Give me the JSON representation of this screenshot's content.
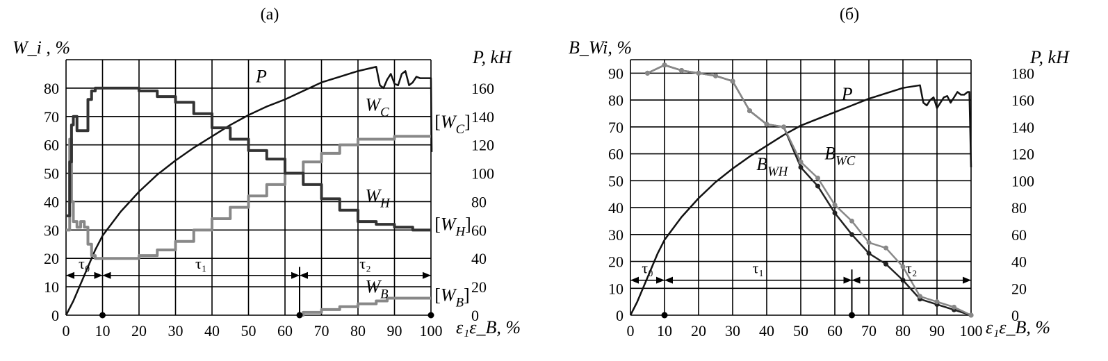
{
  "chart_data": [
    {
      "type": "line",
      "panel_label": "(a)",
      "ylabel_left": "W_i , %",
      "ylabel_right": "P, kH",
      "xlabel": "ε₁ε_B, %",
      "xlim": [
        0,
        100
      ],
      "ylim_left": [
        0,
        90
      ],
      "ylim_right": [
        0,
        180
      ],
      "x_ticks": [
        0,
        10,
        20,
        30,
        40,
        50,
        60,
        70,
        80,
        90,
        100
      ],
      "y_ticks_left": [
        0,
        10,
        20,
        30,
        40,
        50,
        60,
        70,
        80
      ],
      "y_ticks_right": [
        0,
        20,
        40,
        60,
        80,
        100,
        120,
        140,
        160
      ],
      "grid": true,
      "series": [
        {
          "name": "P",
          "axis": "right",
          "color": "#111111",
          "kind": "line",
          "x": [
            0,
            2,
            4,
            6,
            8,
            10,
            15,
            20,
            25,
            30,
            35,
            40,
            45,
            50,
            55,
            60,
            65,
            70,
            75,
            80,
            85,
            86,
            87,
            88,
            89,
            90,
            91,
            92,
            93,
            94,
            95,
            96,
            97,
            98,
            99,
            100,
            100.2
          ],
          "y": [
            0,
            10,
            22,
            34,
            46,
            56,
            73,
            87,
            99,
            109,
            118,
            126,
            134,
            141,
            147,
            152,
            158,
            164,
            168,
            172,
            175,
            162,
            160,
            166,
            170,
            163,
            162,
            170,
            172,
            162,
            164,
            168,
            167,
            167,
            167,
            167,
            115
          ]
        },
        {
          "name": "W_C",
          "axis": "left",
          "color": "#888888",
          "kind": "step",
          "x": [
            0,
            1,
            1.5,
            2,
            3,
            4,
            5,
            6,
            7,
            8,
            10,
            15,
            20,
            25,
            30,
            35,
            40,
            45,
            50,
            55,
            60,
            65,
            70,
            75,
            80,
            85,
            90,
            95,
            100
          ],
          "y": [
            30,
            62,
            40,
            33,
            31,
            33,
            31,
            25,
            21,
            20,
            20,
            20,
            21,
            23,
            26,
            30,
            34,
            38,
            42,
            46,
            50,
            54,
            57,
            60,
            62,
            62,
            63,
            63,
            63
          ]
        },
        {
          "name": "W_H",
          "axis": "left",
          "color": "#333333",
          "kind": "step",
          "x": [
            0,
            1,
            1.5,
            2,
            3,
            4,
            5,
            6,
            7,
            8,
            10,
            15,
            20,
            25,
            30,
            35,
            40,
            45,
            50,
            55,
            60,
            65,
            70,
            75,
            80,
            85,
            90,
            95,
            100
          ],
          "y": [
            35,
            54,
            67,
            70,
            65,
            65,
            65,
            76,
            79,
            80,
            80,
            80,
            79,
            77,
            75,
            71,
            66,
            62,
            58,
            55,
            50,
            46,
            41,
            37,
            33,
            32,
            31,
            30,
            30
          ]
        },
        {
          "name": "W_B",
          "axis": "left",
          "color": "#888888",
          "kind": "step",
          "x": [
            64,
            65,
            70,
            75,
            80,
            85,
            88,
            90,
            95,
            100
          ],
          "y": [
            0,
            1,
            2,
            3,
            4,
            5,
            6,
            6,
            6,
            6
          ]
        }
      ],
      "annotations": [
        {
          "text": "P",
          "x": 52,
          "y": 82
        },
        {
          "text": "W_C",
          "x": 82,
          "y": 72
        },
        {
          "text": "W_H",
          "x": 82,
          "y": 40
        },
        {
          "text": "W_B",
          "x": 82,
          "y": 8
        },
        {
          "text": "[W_C]",
          "x": 101,
          "y": 66
        },
        {
          "text": "[W_H]",
          "x": 101,
          "y": 30
        },
        {
          "text": "[W_B]",
          "x": 101,
          "y": 5
        }
      ],
      "intervals": [
        {
          "label": "τ₀",
          "from": 0,
          "to": 10,
          "y": 14
        },
        {
          "label": "τ₁",
          "from": 10,
          "to": 64,
          "y": 14
        },
        {
          "label": "τ₂",
          "from": 64,
          "to": 100,
          "y": 14
        }
      ],
      "markers_x": [
        10,
        64,
        100
      ],
      "dividers": [
        {
          "x": 64,
          "y1": 0,
          "y2": 17
        }
      ]
    },
    {
      "type": "line",
      "panel_label": "(б)",
      "ylabel_left": "B_Wi, %",
      "ylabel_right": "P, kH",
      "xlabel": "ε₁ε_B, %",
      "xlim": [
        0,
        100
      ],
      "ylim_left": [
        0,
        95
      ],
      "ylim_right": [
        0,
        190
      ],
      "x_ticks": [
        0,
        10,
        20,
        30,
        40,
        50,
        60,
        70,
        80,
        90,
        100
      ],
      "y_ticks_left": [
        0,
        10,
        20,
        30,
        40,
        50,
        60,
        70,
        80,
        90
      ],
      "y_ticks_right": [
        0,
        20,
        40,
        60,
        80,
        100,
        120,
        140,
        160,
        180
      ],
      "grid": true,
      "series": [
        {
          "name": "P",
          "axis": "right",
          "color": "#111111",
          "kind": "line",
          "x": [
            0,
            2,
            4,
            6,
            8,
            10,
            15,
            20,
            25,
            30,
            35,
            40,
            45,
            50,
            55,
            60,
            65,
            70,
            75,
            80,
            85,
            86,
            87,
            88,
            89,
            90,
            91,
            92,
            93,
            94,
            95,
            96,
            97,
            98,
            99,
            99.5,
            100
          ],
          "y": [
            0,
            10,
            22,
            34,
            46,
            56,
            73,
            87,
            99,
            109,
            118,
            126,
            134,
            141,
            146,
            151,
            156,
            161,
            165,
            169,
            171,
            158,
            156,
            160,
            162,
            154,
            158,
            162,
            163,
            158,
            162,
            166,
            164,
            164,
            166,
            166,
            110
          ]
        },
        {
          "name": "B_WH",
          "axis": "left",
          "color": "#222222",
          "kind": "line",
          "markers": true,
          "x": [
            5,
            10,
            15,
            20,
            25,
            30,
            35,
            40,
            45,
            50,
            55,
            60,
            65,
            70,
            75,
            80,
            85,
            90,
            95,
            100
          ],
          "y": [
            90,
            93,
            91,
            90,
            89,
            87,
            76,
            71,
            70,
            55,
            48,
            38,
            30,
            23,
            19,
            13,
            6,
            4,
            2,
            0
          ]
        },
        {
          "name": "B_WC",
          "axis": "left",
          "color": "#888888",
          "kind": "line",
          "markers": true,
          "x": [
            5,
            10,
            15,
            20,
            25,
            30,
            35,
            40,
            45,
            50,
            55,
            60,
            65,
            70,
            75,
            80,
            85,
            90,
            95,
            100
          ],
          "y": [
            90,
            93,
            91,
            90,
            89,
            87,
            76,
            71,
            70,
            57,
            51,
            41,
            35,
            27,
            25,
            18,
            7,
            5,
            3,
            0
          ]
        }
      ],
      "annotations": [
        {
          "text": "P",
          "x": 62,
          "y": 80
        },
        {
          "text": "B_WC",
          "x": 57,
          "y": 58
        },
        {
          "text": "B_WH",
          "x": 37,
          "y": 54
        }
      ],
      "intervals": [
        {
          "label": "τ₀",
          "from": 0,
          "to": 10,
          "y": 13
        },
        {
          "label": "τ₁",
          "from": 10,
          "to": 65,
          "y": 13
        },
        {
          "label": "τ₂",
          "from": 65,
          "to": 100,
          "y": 13
        }
      ],
      "markers_x": [
        10,
        65
      ],
      "dividers": [
        {
          "x": 65,
          "y1": 0,
          "y2": 17
        }
      ]
    }
  ]
}
